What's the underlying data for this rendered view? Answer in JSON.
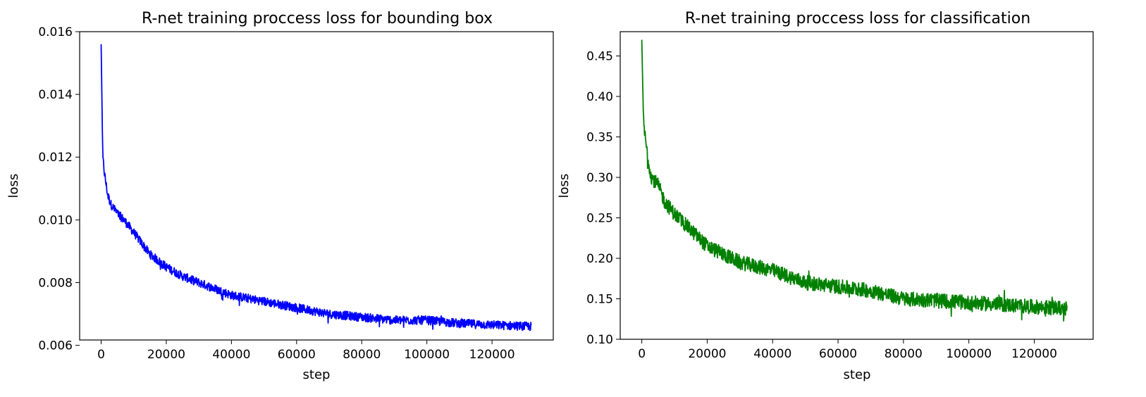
{
  "chart_data": [
    {
      "type": "line",
      "title": "R-net training proccess loss for bounding box",
      "xlabel": "step",
      "ylabel": "loss",
      "xlim": [
        -6600,
        138800
      ],
      "ylim": [
        0.00617,
        0.016
      ],
      "xticks": [
        0,
        20000,
        40000,
        60000,
        80000,
        100000,
        120000
      ],
      "yticks": [
        0.006,
        0.008,
        0.01,
        0.012,
        0.014,
        0.016
      ],
      "ytick_labels": [
        "0.006",
        "0.008",
        "0.010",
        "0.012",
        "0.014",
        "0.016"
      ],
      "grid": false,
      "series": [
        {
          "color": "#0000ff",
          "x": [
            0,
            500,
            1000,
            2000,
            3000,
            5000,
            7000,
            10000,
            15000,
            20000,
            25000,
            30000,
            35000,
            40000,
            50000,
            60000,
            70000,
            80000,
            90000,
            100000,
            110000,
            120000,
            132000
          ],
          "y": [
            0.0156,
            0.012,
            0.0115,
            0.0108,
            0.0105,
            0.0102,
            0.01,
            0.0096,
            0.0089,
            0.0085,
            0.0082,
            0.008,
            0.0078,
            0.0076,
            0.0074,
            0.0072,
            0.007,
            0.0069,
            0.0068,
            0.0068,
            0.0067,
            0.00665,
            0.0066
          ],
          "noise": 0.00014
        }
      ]
    },
    {
      "type": "line",
      "title": "R-net training proccess loss for classification",
      "xlabel": "step",
      "ylabel": "loss",
      "xlim": [
        -6600,
        138000
      ],
      "ylim": [
        0.1,
        0.48
      ],
      "xticks": [
        0,
        20000,
        40000,
        60000,
        80000,
        100000,
        120000
      ],
      "yticks": [
        0.1,
        0.15,
        0.2,
        0.25,
        0.3,
        0.35,
        0.4,
        0.45
      ],
      "ytick_labels": [
        "0.10",
        "0.15",
        "0.20",
        "0.25",
        "0.30",
        "0.35",
        "0.40",
        "0.45"
      ],
      "grid": false,
      "series": [
        {
          "color": "#008000",
          "x": [
            0,
            500,
            1000,
            2000,
            3000,
            5000,
            7000,
            10000,
            15000,
            20000,
            25000,
            30000,
            40000,
            50000,
            60000,
            70000,
            80000,
            90000,
            100000,
            110000,
            120000,
            130000
          ],
          "y": [
            0.47,
            0.37,
            0.35,
            0.32,
            0.3,
            0.29,
            0.27,
            0.255,
            0.235,
            0.215,
            0.205,
            0.195,
            0.185,
            0.17,
            0.165,
            0.16,
            0.15,
            0.148,
            0.145,
            0.143,
            0.14,
            0.138
          ],
          "noise": 0.009
        }
      ]
    }
  ]
}
